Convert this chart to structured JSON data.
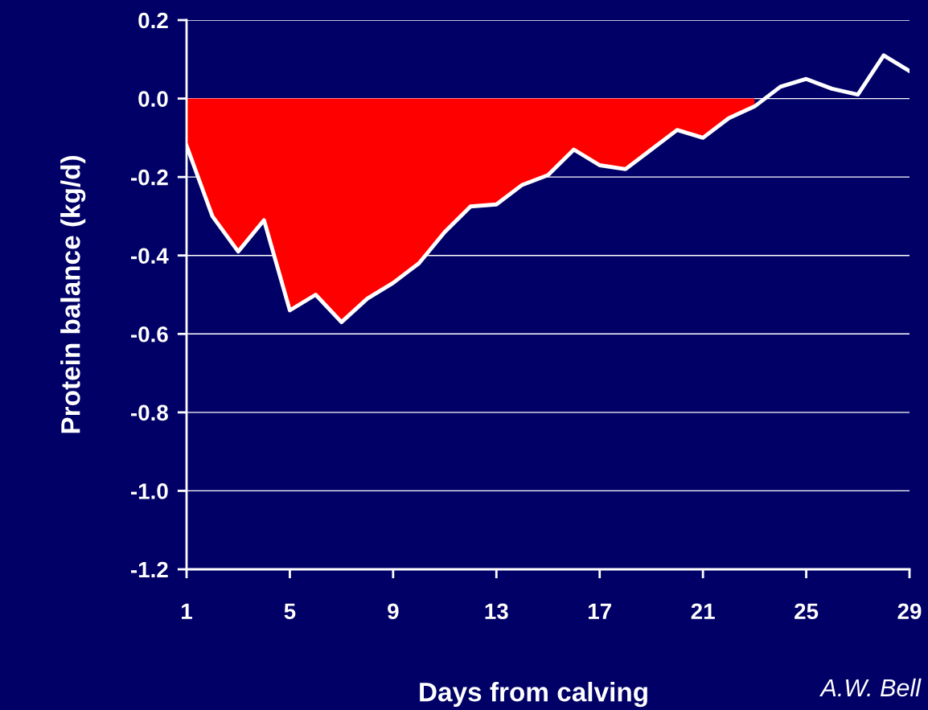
{
  "chart_data": {
    "type": "area",
    "xlabel": "Days from calving",
    "ylabel": "Protein balance (kg/d)",
    "annotations": [
      "A.W. Bell"
    ],
    "x": [
      1,
      2,
      3,
      4,
      5,
      6,
      7,
      8,
      9,
      10,
      11,
      12,
      13,
      14,
      15,
      16,
      17,
      18,
      19,
      20,
      21,
      22,
      23,
      24,
      25,
      26,
      27,
      28,
      29
    ],
    "series": [
      {
        "color": "#ff0000",
        "values": [
          -0.12,
          -0.3,
          -0.39,
          -0.31,
          -0.54,
          -0.5,
          -0.57,
          -0.51,
          -0.47,
          -0.42,
          -0.34,
          -0.275,
          -0.27,
          -0.22,
          -0.195,
          -0.13,
          -0.17,
          -0.18,
          -0.13,
          -0.08,
          -0.1,
          -0.05,
          -0.02,
          null,
          null,
          null,
          null,
          null,
          null
        ]
      },
      {
        "type": "line",
        "color": "#ffffff",
        "values": [
          -0.12,
          -0.3,
          -0.39,
          -0.31,
          -0.54,
          -0.5,
          -0.57,
          -0.51,
          -0.47,
          -0.42,
          -0.34,
          -0.275,
          -0.27,
          -0.22,
          -0.195,
          -0.13,
          -0.17,
          -0.18,
          -0.13,
          -0.08,
          -0.1,
          -0.05,
          -0.02,
          0.03,
          0.05,
          0.025,
          0.01,
          0.11,
          0.07
        ]
      }
    ],
    "xlim": [
      1,
      29
    ],
    "xticks": [
      1,
      5,
      9,
      13,
      17,
      21,
      25,
      29
    ],
    "ylim": [
      -1.2,
      0.2
    ],
    "yticks": [
      {
        "value": -1.2,
        "label": "-1.2"
      },
      {
        "value": -1.0,
        "label": "-1.0"
      },
      {
        "value": -0.8,
        "label": "-0.8"
      },
      {
        "value": -0.6,
        "label": "-0.6"
      },
      {
        "value": -0.4,
        "label": "-0.4"
      },
      {
        "value": -0.2,
        "label": "-0.2"
      },
      {
        "value": 0.0,
        "label": "0.0"
      },
      {
        "value": 0.2,
        "label": "0.2"
      }
    ],
    "grid": "y",
    "legend": false
  }
}
